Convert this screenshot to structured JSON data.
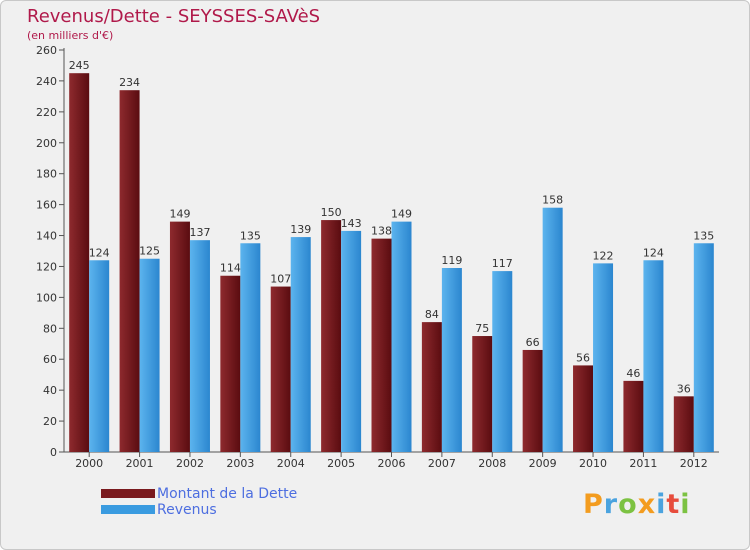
{
  "header": {
    "title": "Revenus/Dette - SEYSSES-SAVèS",
    "subtitle": "(en milliers d'€)"
  },
  "chart_data": {
    "type": "bar",
    "categories": [
      "2000",
      "2001",
      "2002",
      "2003",
      "2004",
      "2005",
      "2006",
      "2007",
      "2008",
      "2009",
      "2010",
      "2011",
      "2012"
    ],
    "series": [
      {
        "name": "Montant de la Dette",
        "color": "#7a1a1e",
        "values": [
          245,
          234,
          149,
          114,
          107,
          150,
          138,
          84,
          75,
          66,
          56,
          46,
          36
        ]
      },
      {
        "name": "Revenus",
        "color": "#3a9be0",
        "values": [
          124,
          125,
          137,
          135,
          139,
          143,
          149,
          119,
          117,
          158,
          122,
          124,
          135
        ]
      }
    ],
    "yticks": [
      0,
      20,
      40,
      60,
      80,
      100,
      120,
      140,
      160,
      180,
      200,
      220,
      240,
      260
    ],
    "ylim": [
      0,
      260
    ],
    "grid": false,
    "legend_position": "bottom-left"
  },
  "logo": {
    "text": "Proxiti"
  }
}
